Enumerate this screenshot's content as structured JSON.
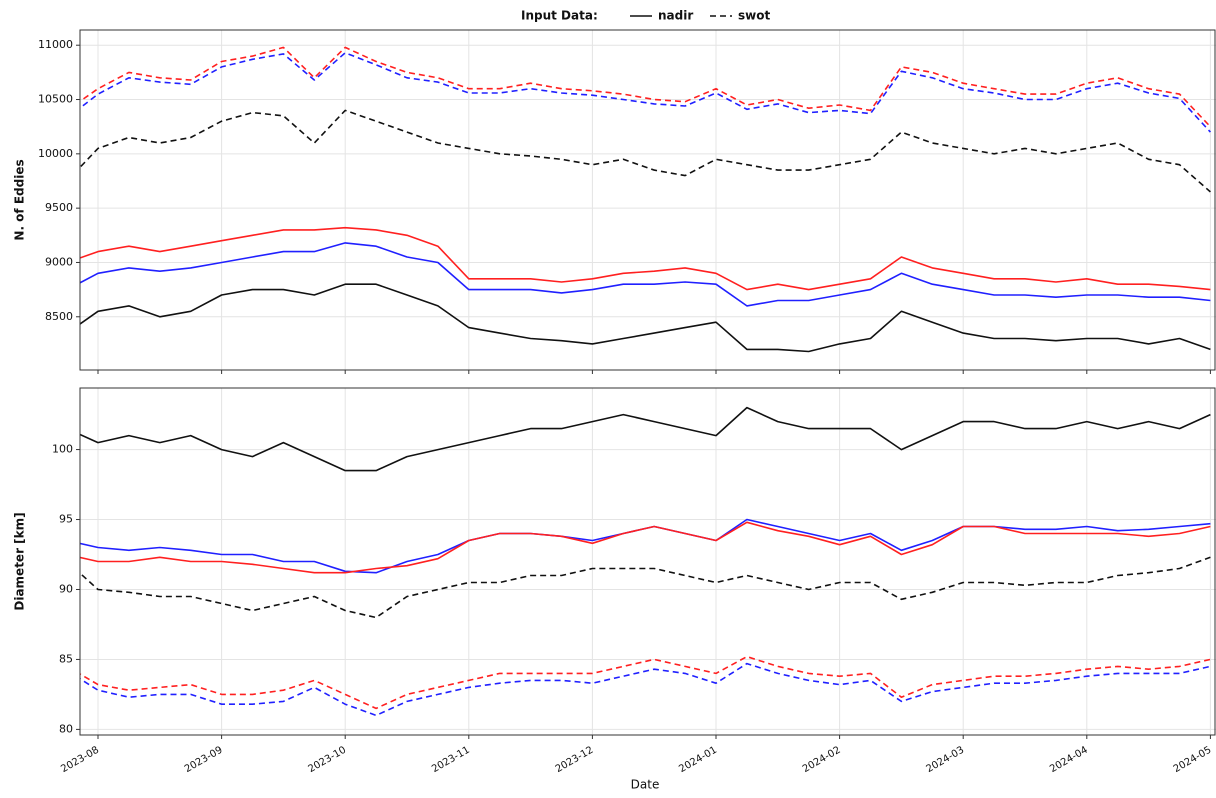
{
  "chart_data": [
    {
      "type": "line",
      "ylabel": "N. of Eddies",
      "legend": {
        "title": "Input Data:",
        "entries": [
          {
            "label": "nadir",
            "dash": "solid"
          },
          {
            "label": "swot",
            "dash": "dashed"
          }
        ]
      },
      "ylim": [
        8010,
        11140
      ],
      "yticks": [
        8500,
        9000,
        9500,
        10000,
        10500,
        11000
      ],
      "grid": true,
      "series": [
        {
          "name": "swot",
          "color": "#ff2020",
          "values": [
            10400,
            10600,
            10750,
            10700,
            10680,
            10850,
            10900,
            10980,
            10700,
            10980,
            10850,
            10750,
            10700,
            10600,
            10600,
            10650,
            10600,
            10580,
            10550,
            10500,
            10480,
            10600,
            10450,
            10500,
            10420,
            10450,
            10400,
            10800,
            10750,
            10650,
            10600,
            10550,
            10550,
            10650,
            10700,
            10600,
            10550,
            10250
          ]
        },
        {
          "name": "swot",
          "color": "#2020ff",
          "values": [
            10330,
            10550,
            10700,
            10660,
            10640,
            10800,
            10870,
            10920,
            10680,
            10930,
            10820,
            10700,
            10660,
            10560,
            10560,
            10600,
            10560,
            10540,
            10500,
            10460,
            10440,
            10560,
            10410,
            10460,
            10380,
            10400,
            10370,
            10760,
            10700,
            10600,
            10560,
            10500,
            10500,
            10600,
            10650,
            10560,
            10510,
            10200
          ]
        },
        {
          "name": "swot",
          "color": "#111111",
          "values": [
            9750,
            10050,
            10150,
            10100,
            10150,
            10300,
            10380,
            10350,
            10100,
            10400,
            10300,
            10200,
            10100,
            10050,
            10000,
            9980,
            9950,
            9900,
            9950,
            9850,
            9800,
            9950,
            9900,
            9850,
            9850,
            9900,
            9950,
            10200,
            10100,
            10050,
            10000,
            10050,
            10000,
            10050,
            10100,
            9950,
            9900,
            9650
          ]
        },
        {
          "name": "nadir",
          "color": "#ff2020",
          "values": [
            9000,
            9100,
            9150,
            9100,
            9150,
            9200,
            9250,
            9300,
            9300,
            9320,
            9300,
            9250,
            9150,
            8850,
            8850,
            8850,
            8820,
            8850,
            8900,
            8920,
            8950,
            8900,
            8750,
            8800,
            8750,
            8800,
            8850,
            9050,
            8950,
            8900,
            8850,
            8850,
            8820,
            8850,
            8800,
            8800,
            8780,
            8750
          ]
        },
        {
          "name": "nadir",
          "color": "#2020ff",
          "values": [
            8750,
            8900,
            8950,
            8920,
            8950,
            9000,
            9050,
            9100,
            9100,
            9180,
            9150,
            9050,
            9000,
            8750,
            8750,
            8750,
            8720,
            8750,
            8800,
            8800,
            8820,
            8800,
            8600,
            8650,
            8650,
            8700,
            8750,
            8900,
            8800,
            8750,
            8700,
            8700,
            8680,
            8700,
            8700,
            8680,
            8680,
            8650
          ]
        },
        {
          "name": "nadir",
          "color": "#111111",
          "values": [
            8350,
            8550,
            8600,
            8500,
            8550,
            8700,
            8750,
            8750,
            8700,
            8800,
            8800,
            8700,
            8600,
            8400,
            8350,
            8300,
            8280,
            8250,
            8300,
            8350,
            8400,
            8450,
            8200,
            8200,
            8180,
            8250,
            8300,
            8550,
            8450,
            8350,
            8300,
            8300,
            8280,
            8300,
            8300,
            8250,
            8300,
            8200
          ]
        }
      ]
    },
    {
      "type": "line",
      "ylabel": "Diameter [km]",
      "xlabel": "Date",
      "categories": [
        null,
        "2023-08",
        null,
        null,
        null,
        "2023-09",
        null,
        null,
        null,
        "2023-10",
        null,
        null,
        null,
        "2023-11",
        null,
        null,
        null,
        "2023-12",
        null,
        null,
        null,
        "2024-01",
        null,
        null,
        null,
        "2024-02",
        null,
        null,
        null,
        "2024-03",
        null,
        null,
        null,
        "2024-04",
        null,
        null,
        null,
        "2024-05"
      ],
      "ylim": [
        79.6,
        104.4
      ],
      "yticks": [
        80,
        85,
        90,
        95,
        100
      ],
      "grid": true,
      "series": [
        {
          "name": "nadir",
          "color": "#111111",
          "values": [
            101.5,
            100.5,
            101,
            100.5,
            101,
            100,
            99.5,
            100.5,
            99.5,
            98.5,
            98.5,
            99.5,
            100,
            100.5,
            101,
            101.5,
            101.5,
            102,
            102.5,
            102,
            101.5,
            101,
            103,
            102,
            101.5,
            101.5,
            101.5,
            100,
            101,
            102,
            102,
            101.5,
            101.5,
            102,
            101.5,
            102,
            101.5,
            102.5
          ]
        },
        {
          "name": "nadir",
          "color": "#2020ff",
          "values": [
            93.5,
            93,
            92.8,
            93,
            92.8,
            92.5,
            92.5,
            92,
            92,
            91.3,
            91.2,
            92,
            92.5,
            93.5,
            94,
            94,
            93.8,
            93.5,
            94,
            94.5,
            94,
            93.5,
            95,
            94.5,
            94,
            93.5,
            94,
            92.8,
            93.5,
            94.5,
            94.5,
            94.3,
            94.3,
            94.5,
            94.2,
            94.3,
            94.5,
            94.7
          ]
        },
        {
          "name": "nadir",
          "color": "#ff2020",
          "values": [
            92.5,
            92,
            92,
            92.3,
            92,
            92,
            91.8,
            91.5,
            91.2,
            91.2,
            91.5,
            91.7,
            92.2,
            93.5,
            94,
            94,
            93.8,
            93.3,
            94,
            94.5,
            94,
            93.5,
            94.8,
            94.2,
            93.8,
            93.2,
            93.8,
            92.5,
            93.2,
            94.5,
            94.5,
            94,
            94,
            94,
            94,
            93.8,
            94,
            94.5
          ]
        },
        {
          "name": "swot",
          "color": "#111111",
          "values": [
            92,
            90,
            89.8,
            89.5,
            89.5,
            89,
            88.5,
            89,
            89.5,
            88.5,
            88,
            89.5,
            90,
            90.5,
            90.5,
            91,
            91,
            91.5,
            91.5,
            91.5,
            91,
            90.5,
            91,
            90.5,
            90,
            90.5,
            90.5,
            89.3,
            89.8,
            90.5,
            90.5,
            90.3,
            90.5,
            90.5,
            91,
            91.2,
            91.5,
            92.3
          ]
        },
        {
          "name": "swot",
          "color": "#ff2020",
          "values": [
            84.5,
            83.2,
            82.8,
            83,
            83.2,
            82.5,
            82.5,
            82.8,
            83.5,
            82.5,
            81.5,
            82.5,
            83,
            83.5,
            84,
            84,
            84,
            84,
            84.5,
            85,
            84.5,
            84,
            85.2,
            84.5,
            84,
            83.8,
            84,
            82.3,
            83.2,
            83.5,
            83.8,
            83.8,
            84,
            84.3,
            84.5,
            84.3,
            84.5,
            85
          ]
        },
        {
          "name": "swot",
          "color": "#2020ff",
          "values": [
            84.2,
            82.8,
            82.3,
            82.5,
            82.5,
            81.8,
            81.8,
            82,
            83,
            81.8,
            81,
            82,
            82.5,
            83,
            83.3,
            83.5,
            83.5,
            83.3,
            83.8,
            84.3,
            84,
            83.3,
            84.7,
            84,
            83.5,
            83.2,
            83.5,
            82,
            82.7,
            83,
            83.3,
            83.3,
            83.5,
            83.8,
            84,
            84,
            84,
            84.5
          ]
        }
      ]
    }
  ]
}
